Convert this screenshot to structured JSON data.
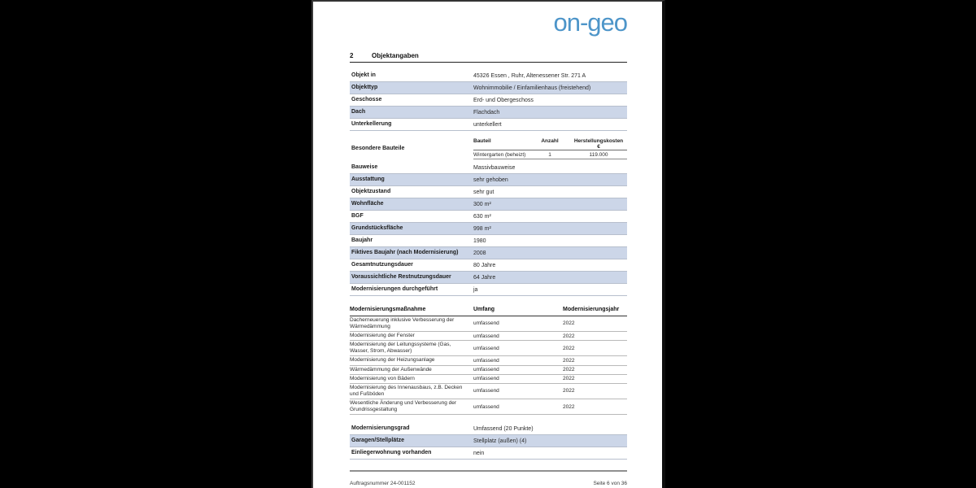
{
  "logo": {
    "text": "on-geo"
  },
  "section": {
    "number": "2",
    "title": "Objektangaben"
  },
  "property_rows": [
    {
      "label": "Objekt in",
      "value": "45326 Essen , Ruhr, Altenessener Str. 271 A"
    },
    {
      "label": "Objekttyp",
      "value": "Wohnimmobilie / Einfamilienhaus (freistehend)"
    },
    {
      "label": "Geschosse",
      "value": "Erd- und Obergeschoss"
    },
    {
      "label": "Dach",
      "value": "Flachdach"
    },
    {
      "label": "Unterkellerung",
      "value": "unterkellert"
    }
  ],
  "besondere_bauteile": {
    "label": "Besondere Bauteile",
    "col_bauteil": "Bauteil",
    "col_anzahl": "Anzahl",
    "col_kosten": "Herstellungskosten",
    "col_kosten_unit": "€",
    "rows": [
      {
        "bauteil": "Wintergarten (beheizt)",
        "anzahl": "1",
        "kosten": "119.000"
      }
    ]
  },
  "detail_rows": [
    {
      "label": "Bauweise",
      "value": "Massivbauweise"
    },
    {
      "label": "Ausstattung",
      "value": "sehr gehoben"
    },
    {
      "label": "Objektzustand",
      "value": "sehr gut"
    },
    {
      "label": "Wohnfläche",
      "value": "300 m²"
    },
    {
      "label": "BGF",
      "value": "630 m²"
    },
    {
      "label": "Grundstücksfläche",
      "value": "998 m²"
    },
    {
      "label": "Baujahr",
      "value": "1980"
    },
    {
      "label": "Fiktives Baujahr (nach Modernisierung)",
      "value": "2008"
    },
    {
      "label": "Gesamtnutzungsdauer",
      "value": "80 Jahre"
    },
    {
      "label": "Voraussichtliche Restnutzungsdauer",
      "value": "64 Jahre"
    },
    {
      "label": "Modernisierungen durchgeführt",
      "value": "ja"
    }
  ],
  "modernisierung": {
    "col_massnahme": "Modernisierungsmaßnahme",
    "col_umfang": "Umfang",
    "col_jahr": "Modernisierungsjahr",
    "rows": [
      {
        "massnahme": "Dacherneuerung inklusive Verbesserung der Wärmedämmung",
        "umfang": "umfassend",
        "jahr": "2022"
      },
      {
        "massnahme": "Modernisierung der Fenster",
        "umfang": "umfassend",
        "jahr": "2022"
      },
      {
        "massnahme": "Modernisierung der Leitungssysteme (Gas, Wasser, Strom, Abwasser)",
        "umfang": "umfassend",
        "jahr": "2022"
      },
      {
        "massnahme": "Modernisierung der Heizungsanlage",
        "umfang": "umfassend",
        "jahr": "2022"
      },
      {
        "massnahme": "Wärmedämmung der Außenwände",
        "umfang": "umfassend",
        "jahr": "2022"
      },
      {
        "massnahme": "Modernisierung von Bädern",
        "umfang": "umfassend",
        "jahr": "2022"
      },
      {
        "massnahme": "Modernisierung des Innenausbaus, z.B. Decken und Fußböden",
        "umfang": "umfassend",
        "jahr": "2022"
      },
      {
        "massnahme": "Wesentliche Änderung und Verbesserung der Grundrissgestaltung",
        "umfang": "umfassend",
        "jahr": "2022"
      }
    ]
  },
  "summary_rows": [
    {
      "label": "Modernisierungsgrad",
      "value": "Umfassend (20 Punkte)"
    },
    {
      "label": "Garagen/Stellplätze",
      "value": "Stellplatz (außen) (4)"
    },
    {
      "label": "Einliegerwohnung vorhanden",
      "value": "nein"
    }
  ],
  "footer": {
    "order_number": "Auftragsnummer 24-001152",
    "page_indicator": "Seite 6 von 36"
  },
  "colors": {
    "row_shade": "#ccd6e8",
    "logo_blue": "#4d95c9"
  }
}
